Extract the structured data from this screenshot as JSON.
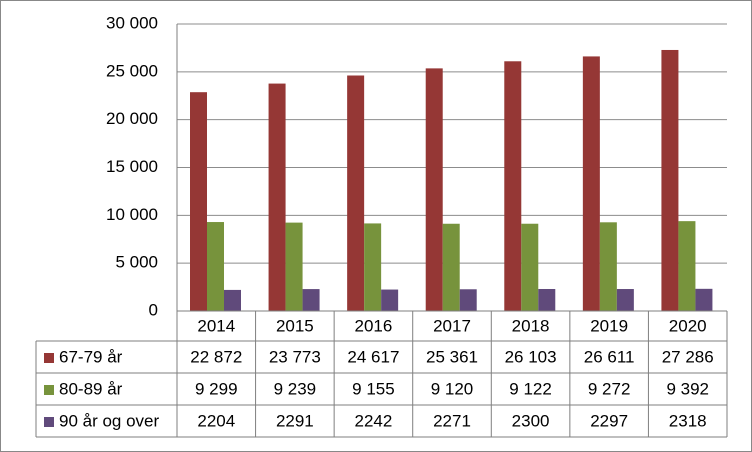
{
  "chart_data": {
    "type": "bar",
    "categories": [
      "2014",
      "2015",
      "2016",
      "2017",
      "2018",
      "2019",
      "2020"
    ],
    "series": [
      {
        "name": "67-79 år",
        "color": "#953735",
        "values": [
          22872,
          23773,
          24617,
          25361,
          26103,
          26611,
          27286
        ],
        "value_labels": [
          "22 872",
          "23 773",
          "24 617",
          "25 361",
          "26 103",
          "26 611",
          "27 286"
        ]
      },
      {
        "name": "80-89 år",
        "color": "#77933c",
        "values": [
          9299,
          9239,
          9155,
          9120,
          9122,
          9272,
          9392
        ],
        "value_labels": [
          "9 299",
          "9 239",
          "9 155",
          "9 120",
          "9 122",
          "9 272",
          "9 392"
        ]
      },
      {
        "name": "90 år og over",
        "color": "#604a7b",
        "values": [
          2204,
          2291,
          2242,
          2271,
          2300,
          2297,
          2318
        ]
      }
    ],
    "ylim": [
      0,
      30000
    ],
    "yticks": [
      0,
      {
        "value": 5000,
        "label": "5 000"
      },
      {
        "value": 10000,
        "label": "10 000"
      },
      {
        "value": 15000,
        "label": "15 000"
      },
      {
        "value": 20000,
        "label": "20 000"
      },
      {
        "value": 25000,
        "label": "25 000"
      },
      {
        "value": 30000,
        "label": "30 000"
      }
    ],
    "grid": true,
    "data_table": true
  }
}
